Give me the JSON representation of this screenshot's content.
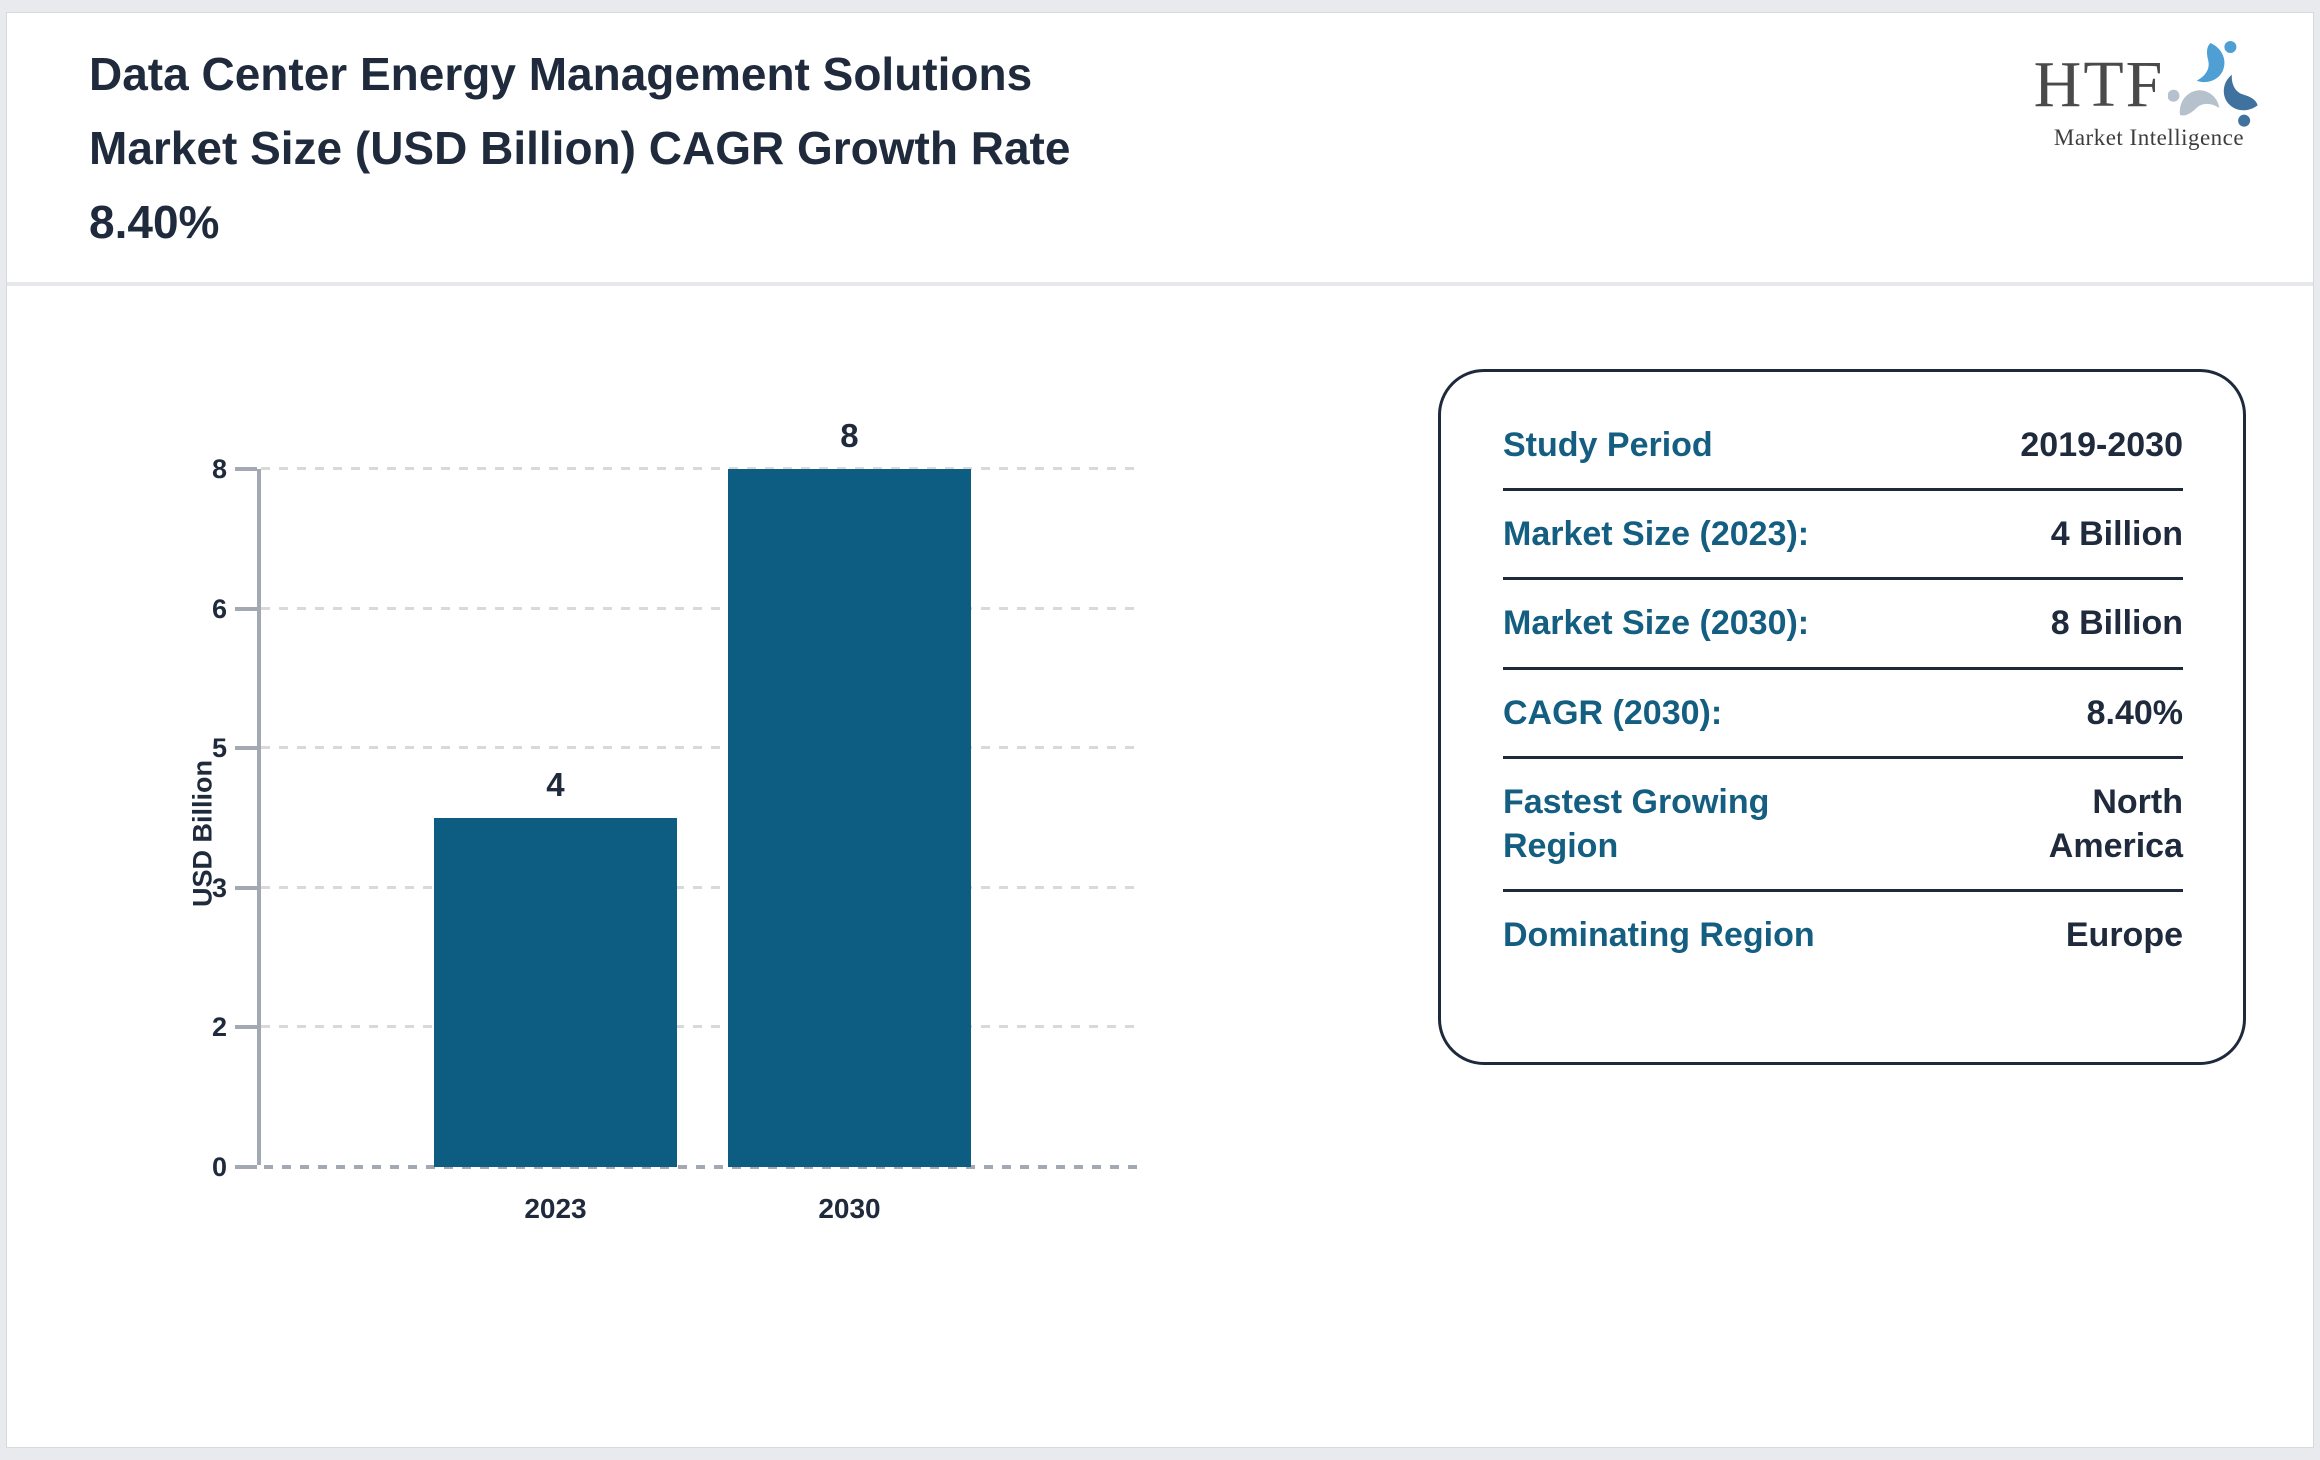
{
  "header": {
    "title_lines": [
      "Data Center Energy Management Solutions",
      "Market Size (USD Billion) CAGR Growth Rate",
      "8.40%"
    ],
    "logo": {
      "name": "HTF",
      "tagline": "Market Intelligence"
    }
  },
  "chart_data": {
    "type": "bar",
    "categories": [
      "2023",
      "2030"
    ],
    "values": [
      4,
      8
    ],
    "value_labels": [
      "4",
      "8"
    ],
    "title": "",
    "xlabel": "",
    "ylabel": "USD Billion",
    "ylim": [
      0,
      8
    ],
    "ytick_labels": [
      "0",
      "2",
      "3",
      "5",
      "6",
      "8"
    ],
    "grid": "horizontal-dashed",
    "legend": "none",
    "bar_color": "#0d5c82"
  },
  "info_card": {
    "rows": [
      {
        "label": "Study Period",
        "value": "2019-2030",
        "wrap": false
      },
      {
        "label": "Market Size (2023):",
        "value": "4 Billion",
        "wrap": false
      },
      {
        "label": "Market Size (2030):",
        "value": "8 Billion",
        "wrap": false
      },
      {
        "label": "CAGR (2030):",
        "value": "8.40%",
        "wrap": false
      },
      {
        "label": "Fastest Growing Region",
        "value": "North America",
        "wrap": true
      },
      {
        "label": "Dominating Region",
        "value": "Europe",
        "wrap": false
      }
    ]
  },
  "colors": {
    "page_background": "#e9eaee",
    "surface": "#ffffff",
    "heading_text": "#1f2b3c",
    "label_teal": "#135e81",
    "bar_fill": "#0d5c82",
    "axis_gray": "#a3a9b3",
    "gridline_gray": "#d9d9d9",
    "panel_border": "#1e293b",
    "logo_light_blue": "#4f9fd4",
    "logo_steel_blue": "#3f729e",
    "logo_gray_blue": "#b5c1cc"
  }
}
